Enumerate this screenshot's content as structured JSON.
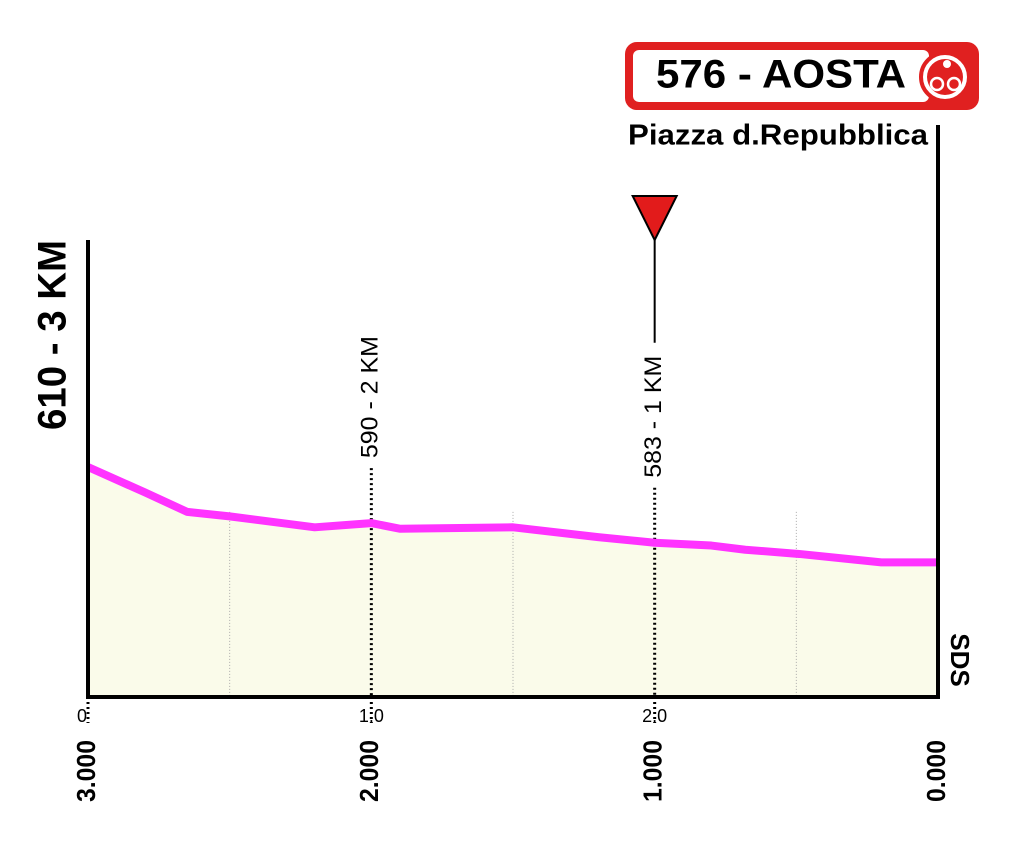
{
  "chart_data": {
    "type": "area",
    "title": "576 - AOSTA",
    "subtitle": "Piazza d.Repubblica",
    "x": [
      0,
      0.2,
      0.35,
      0.5,
      0.8,
      1.0,
      1.1,
      1.5,
      1.8,
      2.0,
      2.2,
      2.32,
      2.51,
      2.8,
      3.0
    ],
    "values": [
      610,
      601,
      594,
      592.4,
      588.5,
      590,
      588,
      588.5,
      585,
      583,
      582,
      580.5,
      579,
      576,
      576
    ],
    "color": "#ff33ff",
    "fill": "#fafbea",
    "xlim": [
      0,
      3
    ],
    "ylim": [
      528,
      610
    ],
    "xticks": [
      0,
      {
        "value": 1,
        "label": "1.0"
      },
      {
        "value": 2,
        "label": "2.0"
      }
    ],
    "x2ticks": [
      {
        "value": 0,
        "label": "3.000"
      },
      {
        "value": 1,
        "label": "2.000"
      },
      {
        "value": 2,
        "label": "1.000"
      },
      {
        "value": 3,
        "label": "0.000"
      }
    ],
    "minor_xticks": [
      0.5,
      1.5,
      2.5
    ],
    "annotations": [
      {
        "x": 0,
        "text": "610 - 3 KM"
      },
      {
        "x": 1,
        "text": "590 - 2 KM"
      },
      {
        "x": 2,
        "text": "583 - 1 KM",
        "marker": true
      }
    ],
    "credit": "SDS"
  }
}
